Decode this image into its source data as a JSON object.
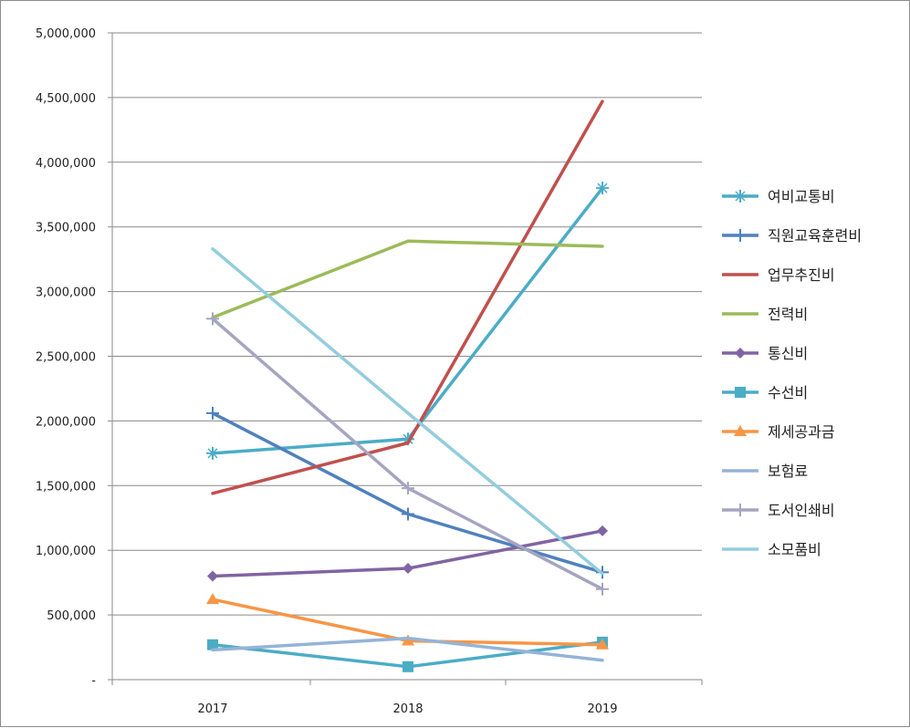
{
  "chart_data": {
    "type": "line",
    "categories": [
      "2017",
      "2018",
      "2019"
    ],
    "ylim": [
      0,
      5000000
    ],
    "y_ticks": [
      {
        "value": 0,
        "label": "-"
      },
      {
        "value": 500000,
        "label": "500,000"
      },
      {
        "value": 1000000,
        "label": "1,000,000"
      },
      {
        "value": 1500000,
        "label": "1,500,000"
      },
      {
        "value": 2000000,
        "label": "2,000,000"
      },
      {
        "value": 2500000,
        "label": "2,500,000"
      },
      {
        "value": 3000000,
        "label": "3,000,000"
      },
      {
        "value": 3500000,
        "label": "3,500,000"
      },
      {
        "value": 4000000,
        "label": "4,000,000"
      },
      {
        "value": 4500000,
        "label": "4,500,000"
      },
      {
        "value": 5000000,
        "label": "5,000,000"
      }
    ],
    "grid": true,
    "legend_position": "right",
    "series": [
      {
        "name": "여비교통비",
        "values": [
          1750000,
          1860000,
          3800000
        ],
        "color": "#4BACC6",
        "marker": "asterisk"
      },
      {
        "name": "직원교육훈련비",
        "values": [
          2060000,
          1280000,
          830000
        ],
        "color": "#4F81BD",
        "marker": "plus"
      },
      {
        "name": "업무추진비",
        "values": [
          1440000,
          1830000,
          4470000
        ],
        "color": "#C0504D",
        "marker": "none"
      },
      {
        "name": "전력비",
        "values": [
          2800000,
          3390000,
          3350000
        ],
        "color": "#9BBB59",
        "marker": "none"
      },
      {
        "name": "통신비",
        "values": [
          800000,
          860000,
          1150000
        ],
        "color": "#8064A2",
        "marker": "diamond"
      },
      {
        "name": "수선비",
        "values": [
          270000,
          100000,
          290000
        ],
        "color": "#4BACC6",
        "marker": "square"
      },
      {
        "name": "제세공과금",
        "values": [
          620000,
          300000,
          270000
        ],
        "color": "#F79646",
        "marker": "triangle"
      },
      {
        "name": "보험료",
        "values": [
          230000,
          320000,
          150000
        ],
        "color": "#95B3D7",
        "marker": "none"
      },
      {
        "name": "도서인쇄비",
        "values": [
          2790000,
          1480000,
          700000
        ],
        "color": "#A5A5C0",
        "marker": "plus"
      },
      {
        "name": "소모품비",
        "values": [
          3330000,
          2060000,
          820000
        ],
        "color": "#93CDDD",
        "marker": "none"
      }
    ]
  }
}
